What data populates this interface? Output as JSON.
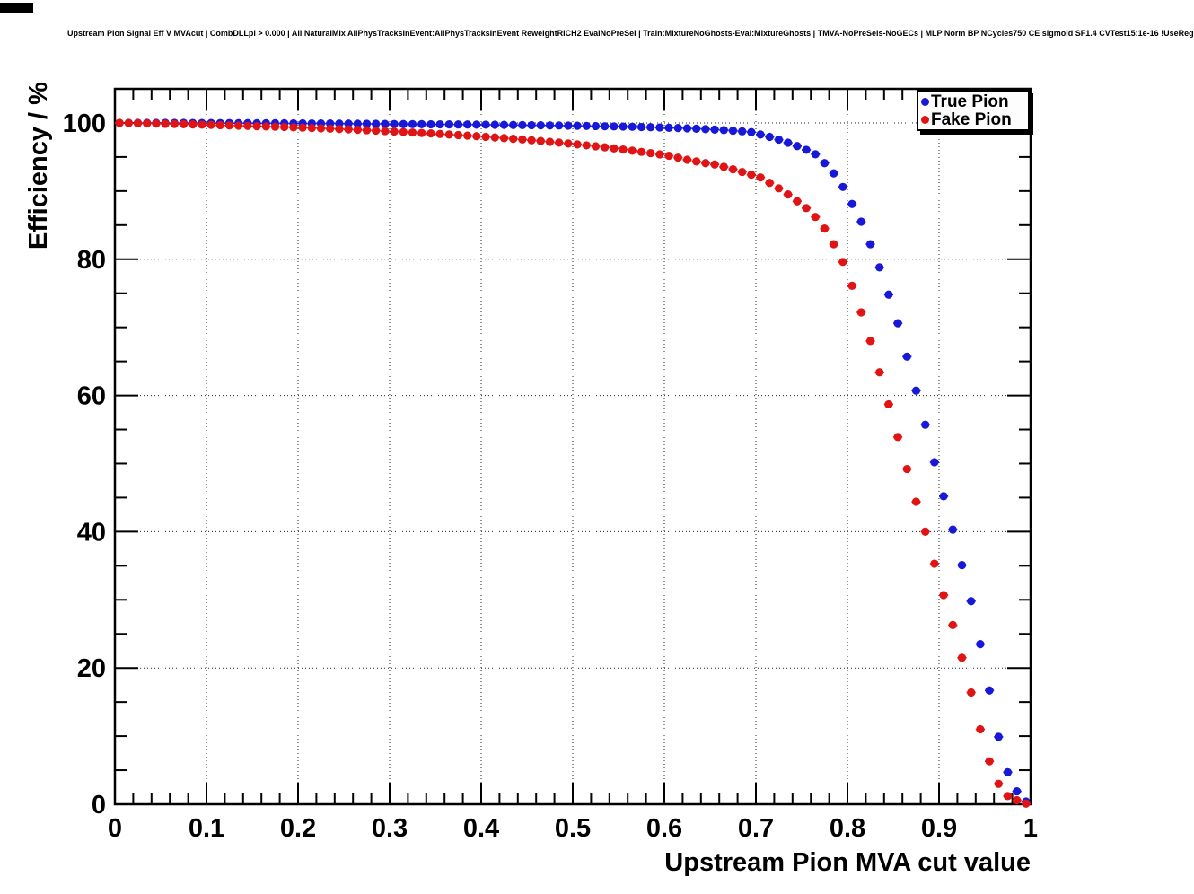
{
  "title": "Upstream Pion Signal Eff V MVAcut | CombDLLpi > 0.000 | All NaturalMix AllPhysTracksInEvent:AllPhysTracksInEvent ReweightRICH2 EvalNoPreSel | Train:MixtureNoGhosts-Eval:MixtureGhosts | TMVA-NoPreSels-NoGECs | MLP Norm BP NCycles750 CE sigmoid SF1.4 CVTest15:1e-16 !UseReg",
  "legend": {
    "position": "top-right",
    "entries": [
      {
        "label": "True Pion",
        "color": "#1818d8"
      },
      {
        "label": "Fake Pion",
        "color": "#e01414"
      }
    ]
  },
  "chart_data": {
    "type": "scatter",
    "title": "Upstream Pion Signal Eff V MVAcut | CombDLLpi > 0.000 | All NaturalMix AllPhysTracksInEvent:AllPhysTracksInEvent ReweightRICH2 EvalNoPreSel | Train:MixtureNoGhosts-Eval:MixtureGhosts | TMVA-NoPreSels-NoGECs | MLP Norm BP NCycles750 CE sigmoid SF1.4 CVTest15:1e-16 !UseReg",
    "xlabel": "Upstream Pion MVA cut value",
    "ylabel": "Efficiency / %",
    "xlim": [
      0,
      1
    ],
    "ylim": [
      0,
      105
    ],
    "x_major_ticks": [
      0,
      0.1,
      0.2,
      0.3,
      0.4,
      0.5,
      0.6,
      0.7,
      0.8,
      0.9,
      1
    ],
    "y_major_ticks": [
      0,
      20,
      40,
      60,
      80,
      100
    ],
    "x_minor_step": 0.02,
    "y_minor_step": 5,
    "grid": true,
    "grid_style": "dotted",
    "legend_position": "top-right",
    "marker": "filled-circle",
    "x_bin_halfwidth": 0.005,
    "x": [
      0.005,
      0.015,
      0.025,
      0.035,
      0.045,
      0.055,
      0.065,
      0.075,
      0.085,
      0.095,
      0.105,
      0.115,
      0.125,
      0.135,
      0.145,
      0.155,
      0.165,
      0.175,
      0.185,
      0.195,
      0.205,
      0.215,
      0.225,
      0.235,
      0.245,
      0.255,
      0.265,
      0.275,
      0.285,
      0.295,
      0.305,
      0.315,
      0.325,
      0.335,
      0.345,
      0.355,
      0.365,
      0.375,
      0.385,
      0.395,
      0.405,
      0.415,
      0.425,
      0.435,
      0.445,
      0.455,
      0.465,
      0.475,
      0.485,
      0.495,
      0.505,
      0.515,
      0.525,
      0.535,
      0.545,
      0.555,
      0.565,
      0.575,
      0.585,
      0.595,
      0.605,
      0.615,
      0.625,
      0.635,
      0.645,
      0.655,
      0.665,
      0.675,
      0.685,
      0.695,
      0.705,
      0.715,
      0.725,
      0.735,
      0.745,
      0.755,
      0.765,
      0.775,
      0.785,
      0.795,
      0.805,
      0.815,
      0.825,
      0.835,
      0.845,
      0.855,
      0.865,
      0.875,
      0.885,
      0.895,
      0.905,
      0.915,
      0.925,
      0.935,
      0.945,
      0.955,
      0.965,
      0.975,
      0.985,
      0.995
    ],
    "series": [
      {
        "name": "True Pion",
        "color": "#1818d8",
        "y": [
          100,
          100,
          100,
          100,
          100,
          99.99,
          99.99,
          99.99,
          99.98,
          99.98,
          99.98,
          99.97,
          99.97,
          99.96,
          99.96,
          99.95,
          99.95,
          99.94,
          99.94,
          99.93,
          99.93,
          99.92,
          99.91,
          99.91,
          99.9,
          99.89,
          99.88,
          99.87,
          99.86,
          99.85,
          99.84,
          99.83,
          99.82,
          99.81,
          99.8,
          99.79,
          99.78,
          99.77,
          99.76,
          99.75,
          99.74,
          99.73,
          99.71,
          99.7,
          99.68,
          99.67,
          99.65,
          99.63,
          99.62,
          99.6,
          99.58,
          99.56,
          99.54,
          99.51,
          99.49,
          99.46,
          99.43,
          99.4,
          99.37,
          99.33,
          99.29,
          99.25,
          99.2,
          99.15,
          99.09,
          99.02,
          98.95,
          98.86,
          98.76,
          98.64,
          98.3,
          97.95,
          97.55,
          97.1,
          96.6,
          96.05,
          95.4,
          94.1,
          92.6,
          90.6,
          88.1,
          85.5,
          82.2,
          78.8,
          74.8,
          70.6,
          65.7,
          60.7,
          55.7,
          50.2,
          45.2,
          40.3,
          35.1,
          29.8,
          23.5,
          16.7,
          9.9,
          4.7,
          1.9,
          0.4
        ]
      },
      {
        "name": "Fake Pion",
        "color": "#e01414",
        "y": [
          100,
          99.97,
          99.95,
          99.92,
          99.9,
          99.87,
          99.84,
          99.81,
          99.78,
          99.74,
          99.71,
          99.67,
          99.63,
          99.6,
          99.56,
          99.52,
          99.48,
          99.44,
          99.4,
          99.36,
          99.31,
          99.26,
          99.21,
          99.16,
          99.1,
          99.05,
          98.99,
          98.93,
          98.87,
          98.8,
          98.74,
          98.67,
          98.6,
          98.53,
          98.46,
          98.38,
          98.3,
          98.22,
          98.14,
          98.05,
          97.96,
          97.87,
          97.77,
          97.67,
          97.57,
          97.46,
          97.35,
          97.23,
          97.11,
          96.98,
          96.85,
          96.71,
          96.57,
          96.42,
          96.26,
          96.1,
          95.93,
          95.75,
          95.57,
          95.38,
          95.18,
          94.9,
          94.6,
          94.35,
          94.1,
          93.9,
          93.55,
          93.2,
          92.8,
          92.4,
          92,
          91.2,
          90.4,
          89.5,
          88.5,
          87.5,
          86.2,
          84.5,
          82.2,
          79.6,
          76.1,
          72.2,
          68,
          63.4,
          58.7,
          53.9,
          49.2,
          44.4,
          40,
          35.3,
          30.7,
          26.3,
          21.5,
          16.4,
          11,
          6.3,
          3,
          1.2,
          0.6,
          0.1
        ]
      }
    ]
  }
}
